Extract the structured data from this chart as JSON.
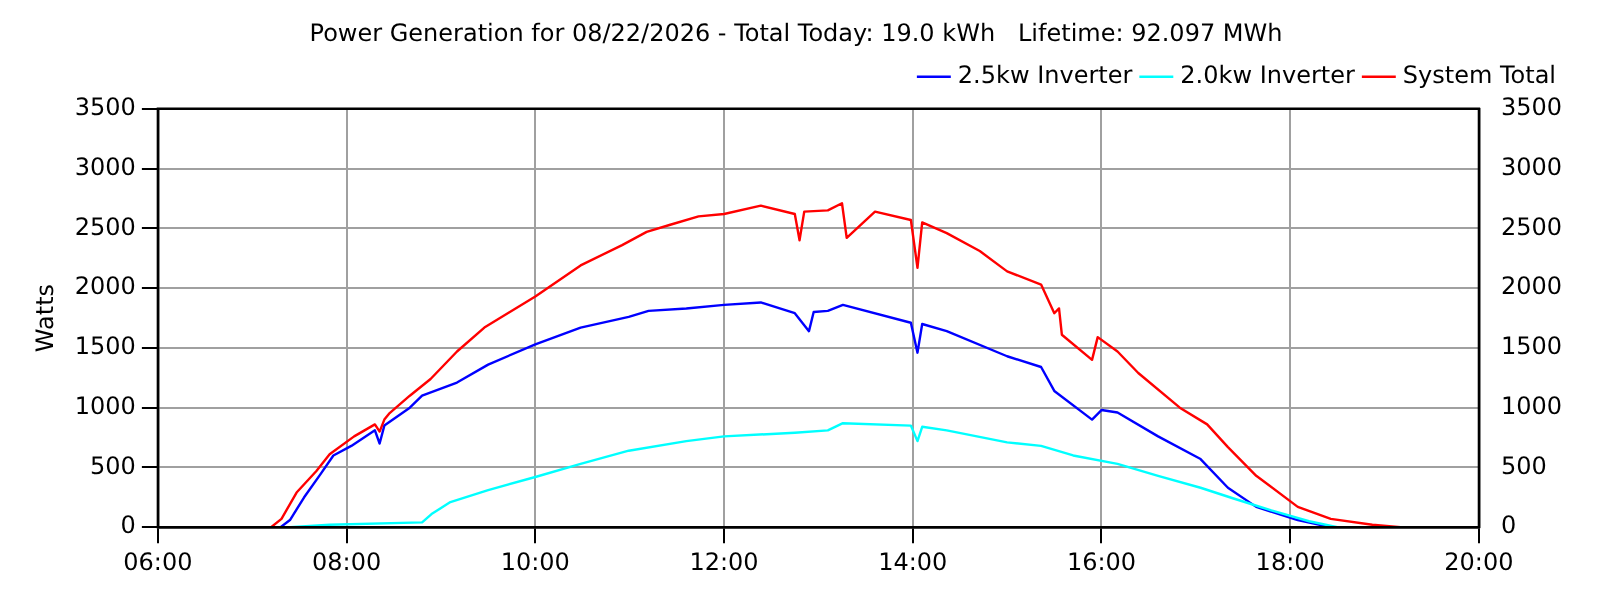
{
  "chart_data": {
    "type": "line",
    "title": "Power Generation for 08/22/2026 - Total Today: 19.0 kWh   Lifetime: 92.097 MWh",
    "ylabel": "Watts",
    "xlim": [
      6,
      20
    ],
    "xticks": [
      {
        "value": 6,
        "label": "06:00"
      },
      {
        "value": 8,
        "label": "08:00"
      },
      {
        "value": 10,
        "label": "10:00"
      },
      {
        "value": 12,
        "label": "12:00"
      },
      {
        "value": 14,
        "label": "14:00"
      },
      {
        "value": 16,
        "label": "16:00"
      },
      {
        "value": 18,
        "label": "18:00"
      },
      {
        "value": 20,
        "label": "20:00"
      }
    ],
    "ylim": [
      0,
      3500
    ],
    "yticks": [
      0,
      500,
      1000,
      1500,
      2000,
      2500,
      3000,
      3500
    ],
    "y2lim": [
      0,
      3500
    ],
    "y2ticks": [
      0,
      500,
      1000,
      1500,
      2000,
      2500,
      3000,
      3500
    ],
    "grid": true,
    "legend": "top right",
    "marker": "none",
    "line_style": "solid",
    "series": [
      {
        "name": "2.5kw Inverter",
        "color": "#0000ff",
        "x": [
          7.3,
          7.4,
          7.55,
          7.72,
          7.86,
          8.05,
          8.3,
          8.35,
          8.4,
          8.67,
          8.8,
          9.17,
          9.5,
          10.0,
          10.48,
          10.99,
          11.2,
          11.6,
          12.0,
          12.39,
          12.75,
          12.9,
          12.95,
          13.1,
          13.26,
          13.98,
          14.05,
          14.1,
          14.36,
          15.0,
          15.36,
          15.5,
          15.9,
          16.0,
          16.17,
          16.6,
          17.05,
          17.34,
          17.64,
          18.08,
          18.43
        ],
        "values": [
          0,
          60,
          250,
          440,
          600,
          680,
          810,
          700,
          850,
          1000,
          1100,
          1210,
          1360,
          1530,
          1670,
          1760,
          1810,
          1830,
          1860,
          1880,
          1790,
          1640,
          1800,
          1810,
          1860,
          1710,
          1460,
          1700,
          1640,
          1430,
          1340,
          1140,
          900,
          980,
          960,
          760,
          570,
          330,
          170,
          60,
          0
        ]
      },
      {
        "name": "2.0kw Inverter",
        "color": "#00ffff",
        "x": [
          7.4,
          7.82,
          8.8,
          8.9,
          9.1,
          9.5,
          10.0,
          10.48,
          10.99,
          11.6,
          12.0,
          12.75,
          13.1,
          13.26,
          13.98,
          14.05,
          14.1,
          14.36,
          15.0,
          15.36,
          15.7,
          16.17,
          16.6,
          17.05,
          17.4,
          17.8,
          18.2,
          18.5
        ],
        "values": [
          0,
          20,
          40,
          110,
          210,
          310,
          420,
          530,
          640,
          720,
          760,
          790,
          810,
          870,
          850,
          720,
          840,
          810,
          710,
          680,
          600,
          530,
          430,
          330,
          240,
          140,
          50,
          0
        ]
      },
      {
        "name": "System Total",
        "color": "#ff0000",
        "x": [
          7.2,
          7.31,
          7.47,
          7.68,
          7.82,
          8.08,
          8.3,
          8.35,
          8.4,
          8.45,
          8.67,
          8.89,
          9.17,
          9.46,
          10.0,
          10.48,
          10.92,
          11.18,
          11.43,
          11.73,
          12.0,
          12.39,
          12.75,
          12.8,
          12.85,
          13.1,
          13.25,
          13.3,
          13.6,
          13.98,
          14.05,
          14.1,
          14.36,
          14.71,
          15.0,
          15.36,
          15.5,
          15.55,
          15.58,
          15.9,
          15.96,
          16.17,
          16.39,
          16.83,
          17.12,
          17.34,
          17.64,
          18.08,
          18.43,
          18.87,
          19.17
        ],
        "values": [
          0,
          70,
          290,
          470,
          610,
          760,
          860,
          800,
          900,
          950,
          1100,
          1240,
          1470,
          1670,
          1930,
          2190,
          2360,
          2470,
          2530,
          2600,
          2620,
          2690,
          2620,
          2400,
          2640,
          2650,
          2710,
          2420,
          2640,
          2570,
          2170,
          2550,
          2460,
          2310,
          2140,
          2030,
          1790,
          1830,
          1610,
          1400,
          1590,
          1470,
          1290,
          1000,
          860,
          670,
          430,
          170,
          70,
          20,
          0
        ]
      }
    ]
  }
}
